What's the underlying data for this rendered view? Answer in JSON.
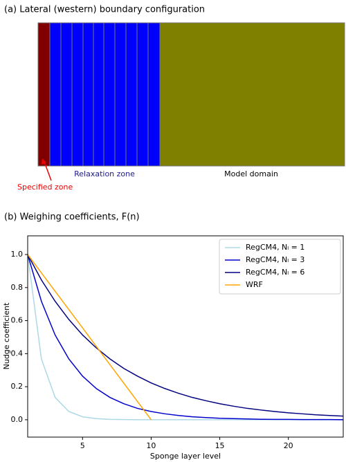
{
  "diagram": {
    "title": "(a) Lateral (western) boundary configuration",
    "labels": {
      "relaxation": "Relaxation zone",
      "model": "Model domain",
      "specified": "Specified zone"
    }
  },
  "chart_data": {
    "type": "line",
    "title": "(b) Weighing coefficients, F(n)",
    "x_label": "Sponge layer level",
    "y_label": "Nudge coefficient",
    "x": [
      1,
      2,
      3,
      4,
      5,
      6,
      7,
      8,
      9,
      10,
      11,
      12,
      13,
      14,
      15,
      16,
      17,
      18,
      19,
      20,
      21,
      22,
      23,
      24
    ],
    "series": [
      {
        "name": "RegCM4, Nₗ = 1",
        "color": "#add8e6",
        "values": [
          1,
          0.368,
          0.135,
          0.05,
          0.018,
          0.007,
          0.002,
          0.001,
          0,
          0,
          0,
          0,
          0,
          0,
          0,
          0,
          0,
          0,
          0,
          0,
          0,
          0,
          0,
          0
        ]
      },
      {
        "name": "RegCM4, Nₗ = 3",
        "color": "#0000cd",
        "values": [
          1,
          0.717,
          0.513,
          0.368,
          0.264,
          0.189,
          0.135,
          0.097,
          0.069,
          0.05,
          0.036,
          0.026,
          0.018,
          0.013,
          0.009,
          0.007,
          0.005,
          0.003,
          0.002,
          0.002,
          0.001,
          0.001,
          0.001,
          0
        ]
      },
      {
        "name": "RegCM4, Nₗ = 6",
        "color": "#000080",
        "values": [
          1,
          0.846,
          0.717,
          0.607,
          0.513,
          0.435,
          0.368,
          0.311,
          0.264,
          0.223,
          0.189,
          0.16,
          0.135,
          0.115,
          0.097,
          0.082,
          0.069,
          0.059,
          0.05,
          0.042,
          0.036,
          0.03,
          0.026,
          0.022
        ]
      },
      {
        "name": "WRF",
        "color": "#ffa500",
        "values": [
          1,
          0.889,
          0.778,
          0.667,
          0.556,
          0.444,
          0.333,
          0.222,
          0.111,
          0,
          null,
          null,
          null,
          null,
          null,
          null,
          null,
          null,
          null,
          null,
          null,
          null,
          null,
          null
        ]
      }
    ],
    "xlim": [
      1,
      24
    ],
    "xticks": [
      5,
      10,
      15,
      20
    ],
    "ylim": [
      -0.105,
      1.113
    ],
    "yticks": [
      {
        "value": 0,
        "label": "0.0"
      },
      0.2,
      0.4,
      0.6,
      0.8,
      {
        "value": 1,
        "label": "1.0"
      }
    ],
    "legend": "upper right"
  }
}
